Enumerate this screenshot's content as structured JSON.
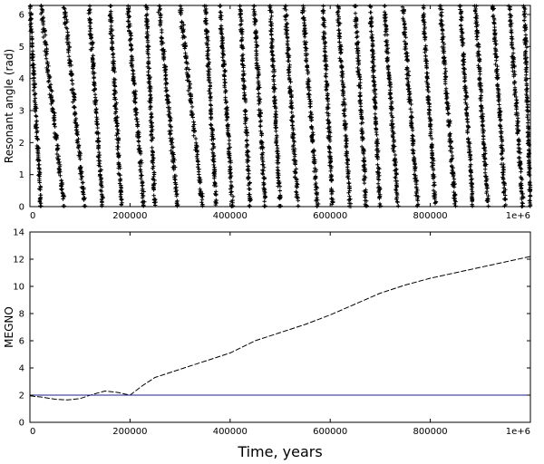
{
  "chart_data": [
    {
      "type": "scatter",
      "ylabel": "Resonant angle (rad)",
      "xlabel": "",
      "xlim": [
        0,
        1000000
      ],
      "ylim": [
        0,
        6.283
      ],
      "x_ticks": [
        0,
        200000,
        400000,
        600000,
        800000,
        1000000
      ],
      "x_tick_labels": [
        "0",
        "200000",
        "400000",
        "600000",
        "800000",
        "1e+6"
      ],
      "y_ticks": [
        0,
        1,
        2,
        3,
        4,
        5,
        6
      ],
      "y_tick_labels": [
        "0",
        "1",
        "2",
        "3",
        "4",
        "5",
        "6"
      ],
      "marker": "+",
      "marker_color": "#000000",
      "grid": false,
      "note_style": "dense plus markers forming descending diagonal bands from 2π to 0",
      "bands": [
        {
          "start": 0,
          "end": 22000
        },
        {
          "start": 22000,
          "end": 68000
        },
        {
          "start": 68000,
          "end": 110000
        },
        {
          "start": 118000,
          "end": 145000
        },
        {
          "start": 160000,
          "end": 183000
        },
        {
          "start": 195000,
          "end": 228000
        },
        {
          "start": 232000,
          "end": 250000
        },
        {
          "start": 258000,
          "end": 295000
        },
        {
          "start": 300000,
          "end": 345000
        },
        {
          "start": 350000,
          "end": 372000
        },
        {
          "start": 380000,
          "end": 405000
        },
        {
          "start": 420000,
          "end": 440000
        },
        {
          "start": 448000,
          "end": 470000
        },
        {
          "start": 480000,
          "end": 500000
        },
        {
          "start": 510000,
          "end": 535000
        },
        {
          "start": 545000,
          "end": 575000
        },
        {
          "start": 585000,
          "end": 605000
        },
        {
          "start": 615000,
          "end": 640000
        },
        {
          "start": 650000,
          "end": 672000
        },
        {
          "start": 680000,
          "end": 700000
        },
        {
          "start": 708000,
          "end": 735000
        },
        {
          "start": 745000,
          "end": 775000
        },
        {
          "start": 785000,
          "end": 810000
        },
        {
          "start": 820000,
          "end": 850000
        },
        {
          "start": 860000,
          "end": 885000
        },
        {
          "start": 890000,
          "end": 915000
        },
        {
          "start": 925000,
          "end": 950000
        },
        {
          "start": 958000,
          "end": 985000
        },
        {
          "start": 988000,
          "end": 1000000
        }
      ]
    },
    {
      "type": "line",
      "ylabel": "MEGNO",
      "xlabel": "Time, years",
      "xlim": [
        0,
        1000000
      ],
      "ylim": [
        0,
        14
      ],
      "x_ticks": [
        0,
        200000,
        400000,
        600000,
        800000,
        1000000
      ],
      "x_tick_labels": [
        "0",
        "200000",
        "400000",
        "600000",
        "800000",
        "1e+6"
      ],
      "y_ticks": [
        0,
        2,
        4,
        6,
        8,
        10,
        12,
        14
      ],
      "y_tick_labels": [
        "0",
        "2",
        "4",
        "6",
        "8",
        "10",
        "12",
        "14"
      ],
      "grid": false,
      "series": [
        {
          "name": "",
          "color": "#000000",
          "style": "dashed",
          "x": [
            0,
            25000,
            50000,
            75000,
            100000,
            125000,
            150000,
            175000,
            200000,
            225000,
            250000,
            300000,
            350000,
            400000,
            450000,
            500000,
            550000,
            600000,
            650000,
            700000,
            750000,
            800000,
            850000,
            900000,
            950000,
            1000000
          ],
          "y": [
            1.95,
            1.85,
            1.7,
            1.65,
            1.75,
            2.05,
            2.3,
            2.2,
            2.0,
            2.7,
            3.3,
            3.9,
            4.5,
            5.1,
            6.0,
            6.6,
            7.2,
            7.9,
            8.7,
            9.5,
            10.1,
            10.6,
            11.0,
            11.4,
            11.8,
            12.2
          ]
        },
        {
          "name": "",
          "color": "#1f1f8f",
          "style": "solid",
          "x": [
            0,
            1000000
          ],
          "y": [
            2,
            2
          ]
        }
      ]
    }
  ]
}
